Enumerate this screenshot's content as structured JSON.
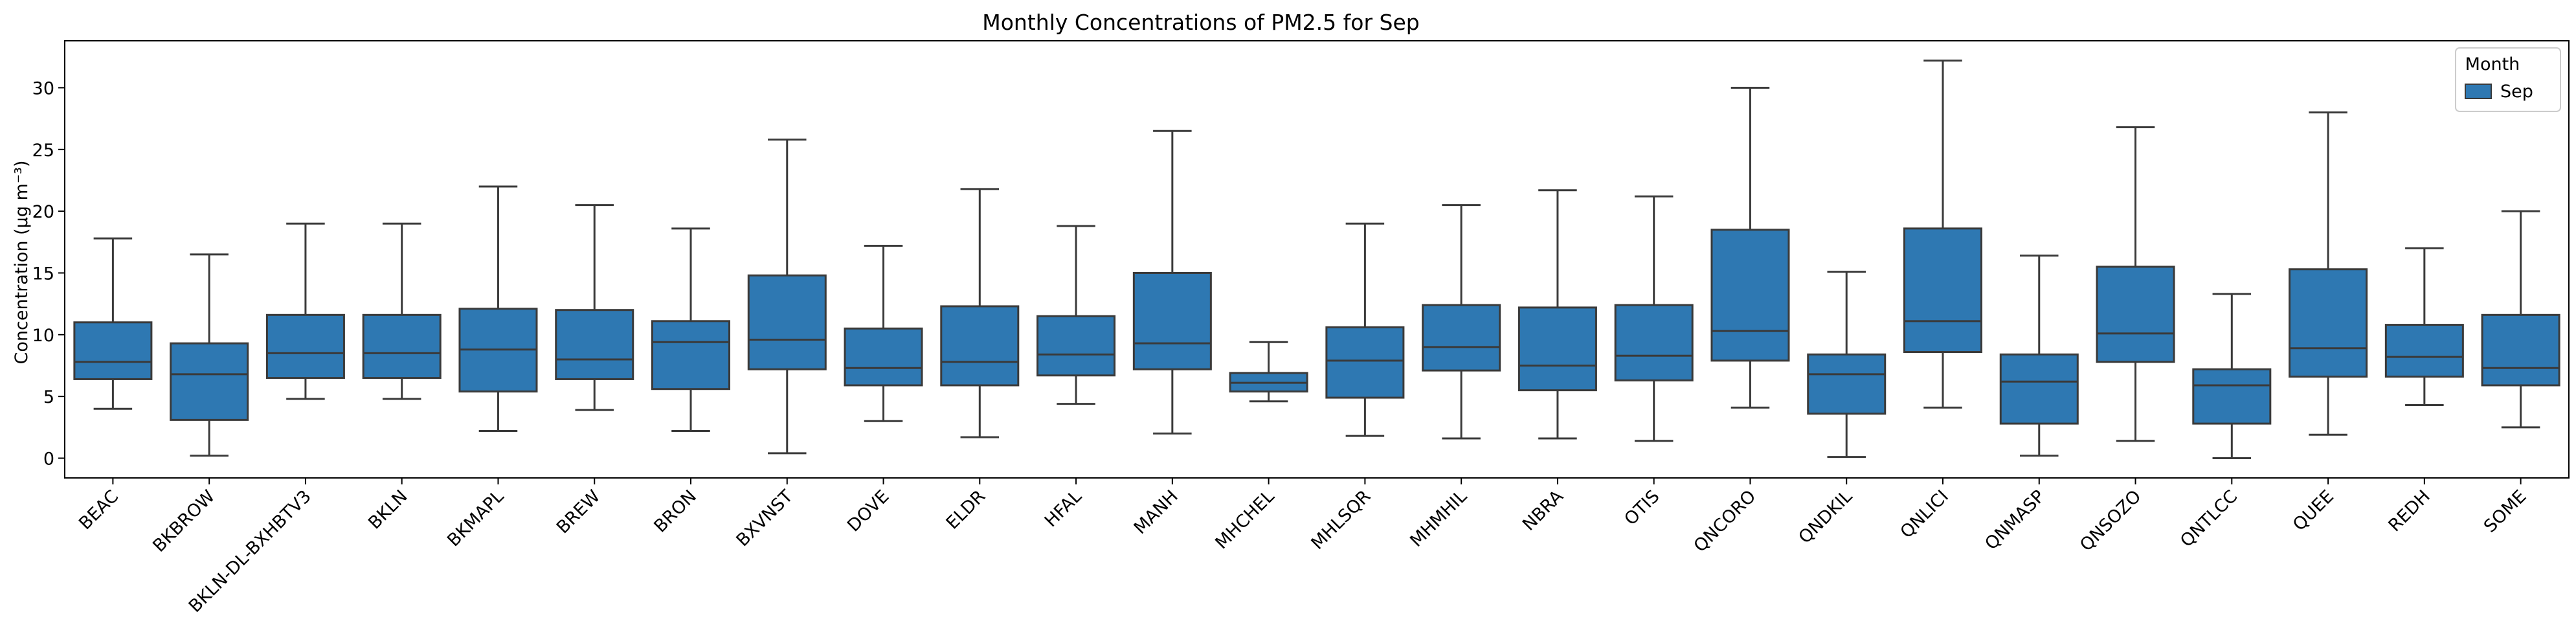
{
  "chart_data": {
    "type": "box",
    "title": "Monthly Concentrations of PM2.5 for Sep",
    "xlabel": "",
    "ylabel": "Concentration (μg m⁻³)",
    "ylim": [
      -1.6,
      33.8
    ],
    "yticks": [
      0,
      5,
      10,
      15,
      20,
      25,
      30
    ],
    "grid": false,
    "legend": {
      "title": "Month",
      "entries": [
        "Sep"
      ],
      "placement": "top-right"
    },
    "series": [
      {
        "name": "Sep",
        "color": "#2e78b2"
      }
    ],
    "categories": [
      "BEAC",
      "BKBROW",
      "BKLN-DL-BXHBTV3",
      "BKLN",
      "BKMAPL",
      "BREW",
      "BRON",
      "BXVNST",
      "DOVE",
      "ELDR",
      "HFAL",
      "MANH",
      "MHCHEL",
      "MHLSQR",
      "MHMHIL",
      "NBRA",
      "OTIS",
      "QNCORO",
      "QNDKIL",
      "QNLICI",
      "QNMASP",
      "QNSOZO",
      "QNTLCC",
      "QUEE",
      "REDH",
      "SOME"
    ],
    "boxes": [
      {
        "category": "BEAC",
        "whisker_low": 4.0,
        "q1": 6.4,
        "median": 7.8,
        "q3": 11.0,
        "whisker_high": 17.8
      },
      {
        "category": "BKBROW",
        "whisker_low": 0.2,
        "q1": 3.1,
        "median": 6.8,
        "q3": 9.3,
        "whisker_high": 16.5
      },
      {
        "category": "BKLN-DL-BXHBTV3",
        "whisker_low": 4.8,
        "q1": 6.5,
        "median": 8.5,
        "q3": 11.6,
        "whisker_high": 19.0
      },
      {
        "category": "BKLN",
        "whisker_low": 4.8,
        "q1": 6.5,
        "median": 8.5,
        "q3": 11.6,
        "whisker_high": 19.0
      },
      {
        "category": "BKMAPL",
        "whisker_low": 2.2,
        "q1": 5.4,
        "median": 8.8,
        "q3": 12.1,
        "whisker_high": 22.0
      },
      {
        "category": "BREW",
        "whisker_low": 3.9,
        "q1": 6.4,
        "median": 8.0,
        "q3": 12.0,
        "whisker_high": 20.5
      },
      {
        "category": "BRON",
        "whisker_low": 2.2,
        "q1": 5.6,
        "median": 9.4,
        "q3": 11.1,
        "whisker_high": 18.6
      },
      {
        "category": "BXVNST",
        "whisker_low": 0.4,
        "q1": 7.2,
        "median": 9.6,
        "q3": 14.8,
        "whisker_high": 25.8
      },
      {
        "category": "DOVE",
        "whisker_low": 3.0,
        "q1": 5.9,
        "median": 7.3,
        "q3": 10.5,
        "whisker_high": 17.2
      },
      {
        "category": "ELDR",
        "whisker_low": 1.7,
        "q1": 5.9,
        "median": 7.8,
        "q3": 12.3,
        "whisker_high": 21.8
      },
      {
        "category": "HFAL",
        "whisker_low": 4.4,
        "q1": 6.7,
        "median": 8.4,
        "q3": 11.5,
        "whisker_high": 18.8
      },
      {
        "category": "MANH",
        "whisker_low": 2.0,
        "q1": 7.2,
        "median": 9.3,
        "q3": 15.0,
        "whisker_high": 26.5
      },
      {
        "category": "MHCHEL",
        "whisker_low": 4.6,
        "q1": 5.4,
        "median": 6.1,
        "q3": 6.9,
        "whisker_high": 9.4
      },
      {
        "category": "MHLSQR",
        "whisker_low": 1.8,
        "q1": 4.9,
        "median": 7.9,
        "q3": 10.6,
        "whisker_high": 19.0
      },
      {
        "category": "MHMHIL",
        "whisker_low": 1.6,
        "q1": 7.1,
        "median": 9.0,
        "q3": 12.4,
        "whisker_high": 20.5
      },
      {
        "category": "NBRA",
        "whisker_low": 1.6,
        "q1": 5.5,
        "median": 7.5,
        "q3": 12.2,
        "whisker_high": 21.7
      },
      {
        "category": "OTIS",
        "whisker_low": 1.4,
        "q1": 6.3,
        "median": 8.3,
        "q3": 12.4,
        "whisker_high": 21.2
      },
      {
        "category": "QNCORO",
        "whisker_low": 4.1,
        "q1": 7.9,
        "median": 10.3,
        "q3": 18.5,
        "whisker_high": 30.0
      },
      {
        "category": "QNDKIL",
        "whisker_low": 0.1,
        "q1": 3.6,
        "median": 6.8,
        "q3": 8.4,
        "whisker_high": 15.1
      },
      {
        "category": "QNLICI",
        "whisker_low": 4.1,
        "q1": 8.6,
        "median": 11.1,
        "q3": 18.6,
        "whisker_high": 32.2
      },
      {
        "category": "QNMASP",
        "whisker_low": 0.2,
        "q1": 2.8,
        "median": 6.2,
        "q3": 8.4,
        "whisker_high": 16.4
      },
      {
        "category": "QNSOZO",
        "whisker_low": 1.4,
        "q1": 7.8,
        "median": 10.1,
        "q3": 15.5,
        "whisker_high": 26.8
      },
      {
        "category": "QNTLCC",
        "whisker_low": 0.0,
        "q1": 2.8,
        "median": 5.9,
        "q3": 7.2,
        "whisker_high": 13.3
      },
      {
        "category": "QUEE",
        "whisker_low": 1.9,
        "q1": 6.6,
        "median": 8.9,
        "q3": 15.3,
        "whisker_high": 28.0
      },
      {
        "category": "REDH",
        "whisker_low": 4.3,
        "q1": 6.6,
        "median": 8.2,
        "q3": 10.8,
        "whisker_high": 17.0
      },
      {
        "category": "SOME",
        "whisker_low": 2.5,
        "q1": 5.9,
        "median": 7.3,
        "q3": 11.6,
        "whisker_high": 20.0
      }
    ]
  }
}
